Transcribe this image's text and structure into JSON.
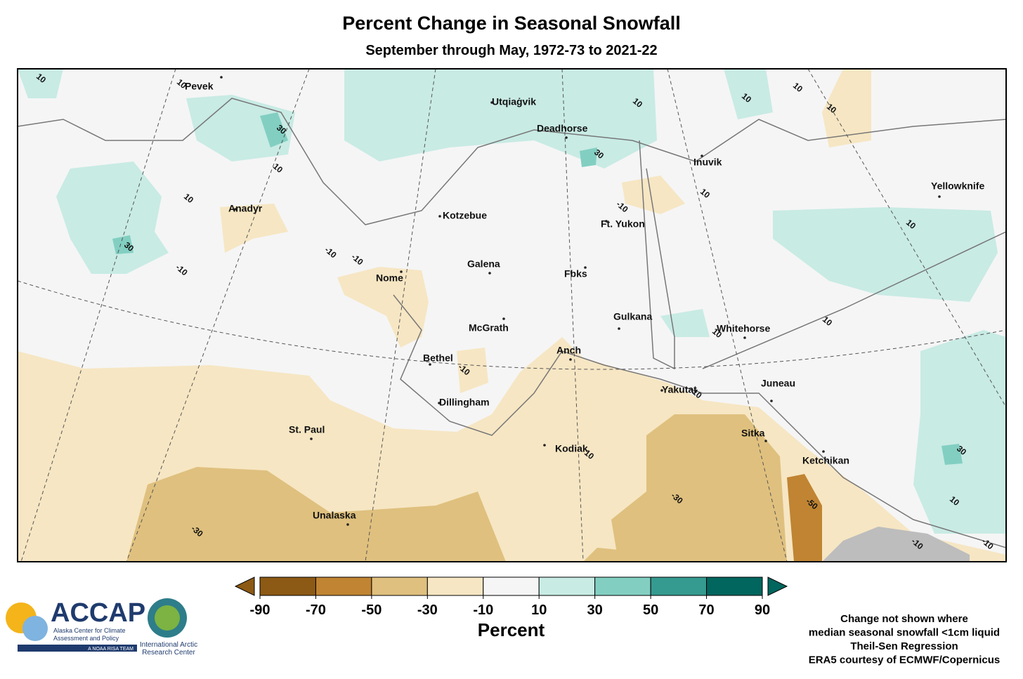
{
  "header": {
    "title": "Percent Change in Seasonal Snowfall",
    "subtitle": "September through May, 1972-73 to 2021-22"
  },
  "places": [
    "Pevek",
    "Utqiaġvik",
    "Deadhorse",
    "Inuvik",
    "Yellowknife",
    "Anadyr",
    "Kotzebue",
    "Ft. Yukon",
    "Nome",
    "Galena",
    "Fbks",
    "Gulkana",
    "Whitehorse",
    "McGrath",
    "Anch",
    "Bethel",
    "Juneau",
    "Yakutat",
    "Dillingham",
    "St. Paul",
    "Sitka",
    "Kodiak",
    "Ketchikan",
    "Unalaska"
  ],
  "contour_labels": [
    10,
    10,
    30,
    10,
    10,
    30,
    -10,
    -10,
    -10,
    10,
    30,
    10,
    10,
    10,
    10,
    -10,
    10,
    10,
    10,
    -10,
    -10,
    -50,
    30,
    10,
    -30,
    -30,
    10,
    -10,
    -10
  ],
  "colorbar": {
    "ticks": [
      -90,
      -70,
      -50,
      -30,
      -10,
      10,
      30,
      50,
      70,
      90
    ],
    "colors": [
      "#8c5a14",
      "#c08432",
      "#dfc07e",
      "#f6e6c3",
      "#f5f5f5",
      "#c8ebe4",
      "#82cfc2",
      "#359a8f",
      "#01665e"
    ],
    "label": "Percent"
  },
  "notes": [
    "Change not shown where",
    "median seasonal snowfall <1cm liquid",
    "Theil-Sen Regression",
    "ERA5 courtesy of ECMWF/Copernicus"
  ],
  "logos": {
    "accap": "ACCAP",
    "accap_lines": [
      "Alaska Center for Climate",
      "Assessment and Policy"
    ],
    "accap_tag": "A NOAA RISA TEAM",
    "iarc_lines": [
      "International Arctic",
      "Research Center"
    ]
  }
}
